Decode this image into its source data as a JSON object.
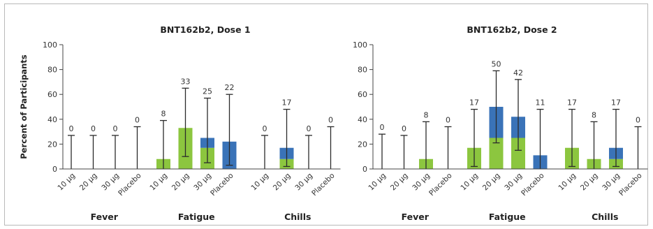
{
  "chart_data": [
    {
      "type": "bar",
      "title": "BNT162b2, Dose 1",
      "ylabel": "Percent of Participants",
      "ylim": [
        0,
        100
      ],
      "yticks": [
        "0",
        "20",
        "40",
        "60",
        "80",
        "100"
      ],
      "groups": [
        {
          "name": "Fever",
          "categories": [
            "10 μg",
            "20 μg",
            "30 μg",
            "Placebo"
          ],
          "green": [
            0,
            0,
            0,
            0
          ],
          "total": [
            0,
            0,
            0,
            0
          ],
          "upper": [
            27,
            27,
            27,
            34
          ],
          "lower": [
            0,
            0,
            0,
            0
          ],
          "labels": [
            "0",
            "0",
            "0",
            "0"
          ]
        },
        {
          "name": "Fatigue",
          "categories": [
            "10 μg",
            "20 μg",
            "30 μg",
            "Placebo"
          ],
          "green": [
            8,
            33,
            17,
            0
          ],
          "total": [
            8,
            33,
            25,
            22
          ],
          "upper": [
            39,
            65,
            57,
            60
          ],
          "lower": [
            0,
            10,
            5,
            3
          ],
          "labels": [
            "8",
            "33",
            "25",
            "22"
          ]
        },
        {
          "name": "Chills",
          "categories": [
            "10 μg",
            "20 μg",
            "30 μg",
            "Placebo"
          ],
          "green": [
            0,
            8,
            0,
            0
          ],
          "total": [
            0,
            17,
            0,
            0
          ],
          "upper": [
            27,
            48,
            27,
            34
          ],
          "lower": [
            0,
            2,
            0,
            0
          ],
          "labels": [
            "0",
            "17",
            "0",
            "0"
          ]
        }
      ]
    },
    {
      "type": "bar",
      "title": "BNT162b2, Dose 2",
      "ylim": [
        0,
        100
      ],
      "yticks": [
        "0",
        "20",
        "40",
        "60",
        "80",
        "100"
      ],
      "groups": [
        {
          "name": "Fever",
          "categories": [
            "10 μg",
            "20 μg",
            "30 μg",
            "Placebo"
          ],
          "green": [
            0,
            0,
            8,
            0
          ],
          "total": [
            0,
            0,
            8,
            0
          ],
          "upper": [
            28,
            27,
            38,
            34
          ],
          "lower": [
            0,
            0,
            0,
            0
          ],
          "labels": [
            "0",
            "0",
            "8",
            "0"
          ]
        },
        {
          "name": "Fatigue",
          "categories": [
            "10 μg",
            "20 μg",
            "30 μg",
            "Placebo"
          ],
          "green": [
            17,
            25,
            25,
            0
          ],
          "total": [
            17,
            50,
            42,
            11
          ],
          "upper": [
            48,
            79,
            72,
            48
          ],
          "lower": [
            2,
            21,
            15,
            0
          ],
          "labels": [
            "17",
            "50",
            "42",
            "11"
          ]
        },
        {
          "name": "Chills",
          "categories": [
            "10 μg",
            "20 μg",
            "30 μg",
            "Placebo"
          ],
          "green": [
            17,
            8,
            8,
            0
          ],
          "total": [
            17,
            8,
            17,
            0
          ],
          "upper": [
            48,
            38,
            48,
            34
          ],
          "lower": [
            2,
            0,
            2,
            0
          ],
          "labels": [
            "17",
            "8",
            "17",
            "0"
          ]
        }
      ]
    }
  ],
  "colors": {
    "green": "#8cc63f",
    "blue": "#3a73b8",
    "axis": "#444444",
    "whisker": "#2b2b2b"
  }
}
